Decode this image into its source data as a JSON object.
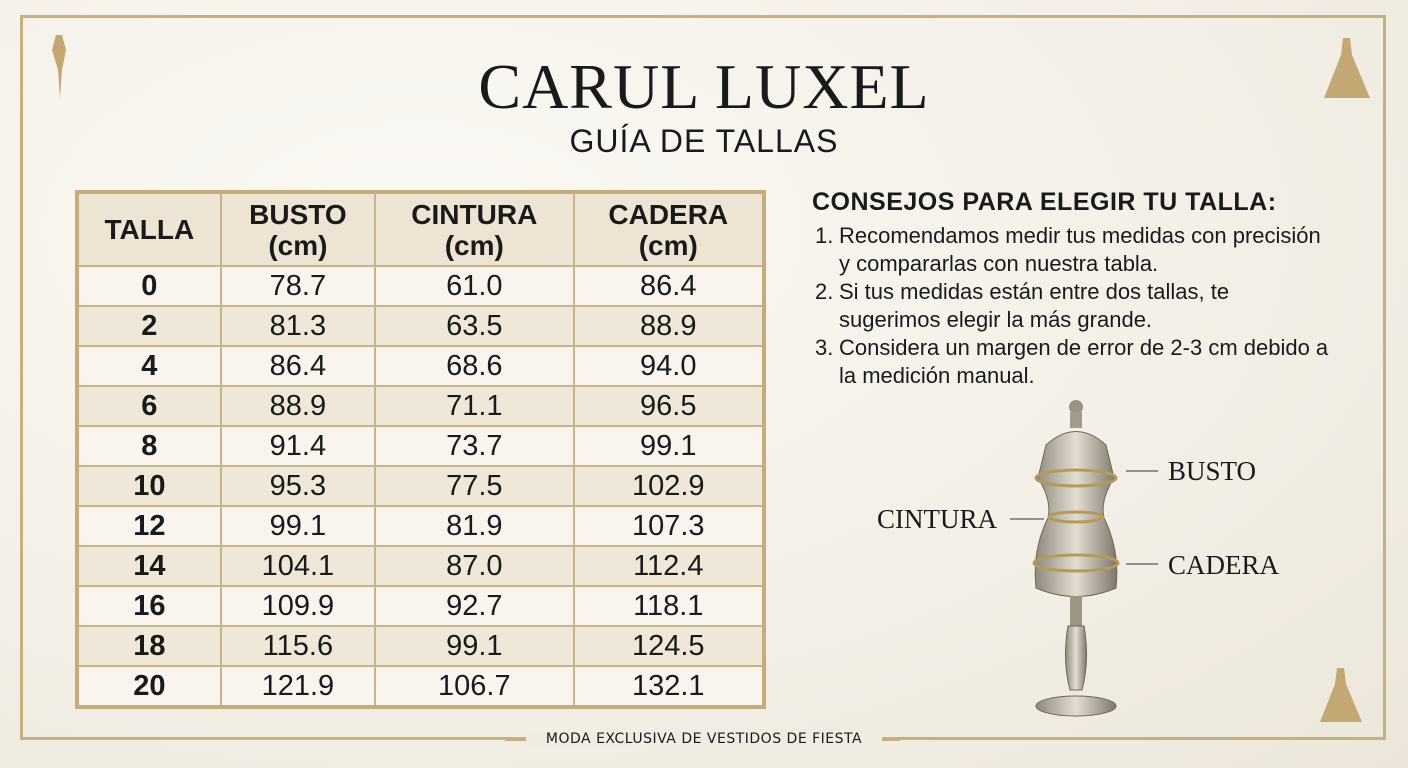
{
  "header": {
    "title": "CARUL LUXEL",
    "subtitle": "GUÍA DE TALLAS"
  },
  "table": {
    "columns": [
      "TALLA",
      "BUSTO\n(cm)",
      "CINTURA\n(cm)",
      "CADERA\n(cm)"
    ],
    "rows": [
      [
        "0",
        "78.7",
        "61.0",
        "86.4"
      ],
      [
        "2",
        "81.3",
        "63.5",
        "88.9"
      ],
      [
        "4",
        "86.4",
        "68.6",
        "94.0"
      ],
      [
        "6",
        "88.9",
        "71.1",
        "96.5"
      ],
      [
        "8",
        "91.4",
        "73.7",
        "99.1"
      ],
      [
        "10",
        "95.3",
        "77.5",
        "102.9"
      ],
      [
        "12",
        "99.1",
        "81.9",
        "107.3"
      ],
      [
        "14",
        "104.1",
        "87.0",
        "112.4"
      ],
      [
        "16",
        "109.9",
        "92.7",
        "118.1"
      ],
      [
        "18",
        "115.6",
        "99.1",
        "124.5"
      ],
      [
        "20",
        "121.9",
        "106.7",
        "132.1"
      ]
    ]
  },
  "tips": {
    "title": "CONSEJOS PARA ELEGIR TU TALLA:",
    "items": [
      {
        "number": "1.",
        "text": "Recomendamos medir tus medidas con precisión y compararlas con nuestra tabla."
      },
      {
        "number": "2.",
        "text": "Si tus medidas están entre dos tallas, te sugerimos elegir la más grande."
      },
      {
        "number": "3.",
        "text": "Considera un margen de error de 2-3 cm debido a la medición manual."
      }
    ]
  },
  "diagram": {
    "bust": "BUSTO",
    "waist": "CINTURA",
    "hip": "CADERA"
  },
  "footer": "MODA EXCLUSIVA DE VESTIDOS DE FIESTA"
}
